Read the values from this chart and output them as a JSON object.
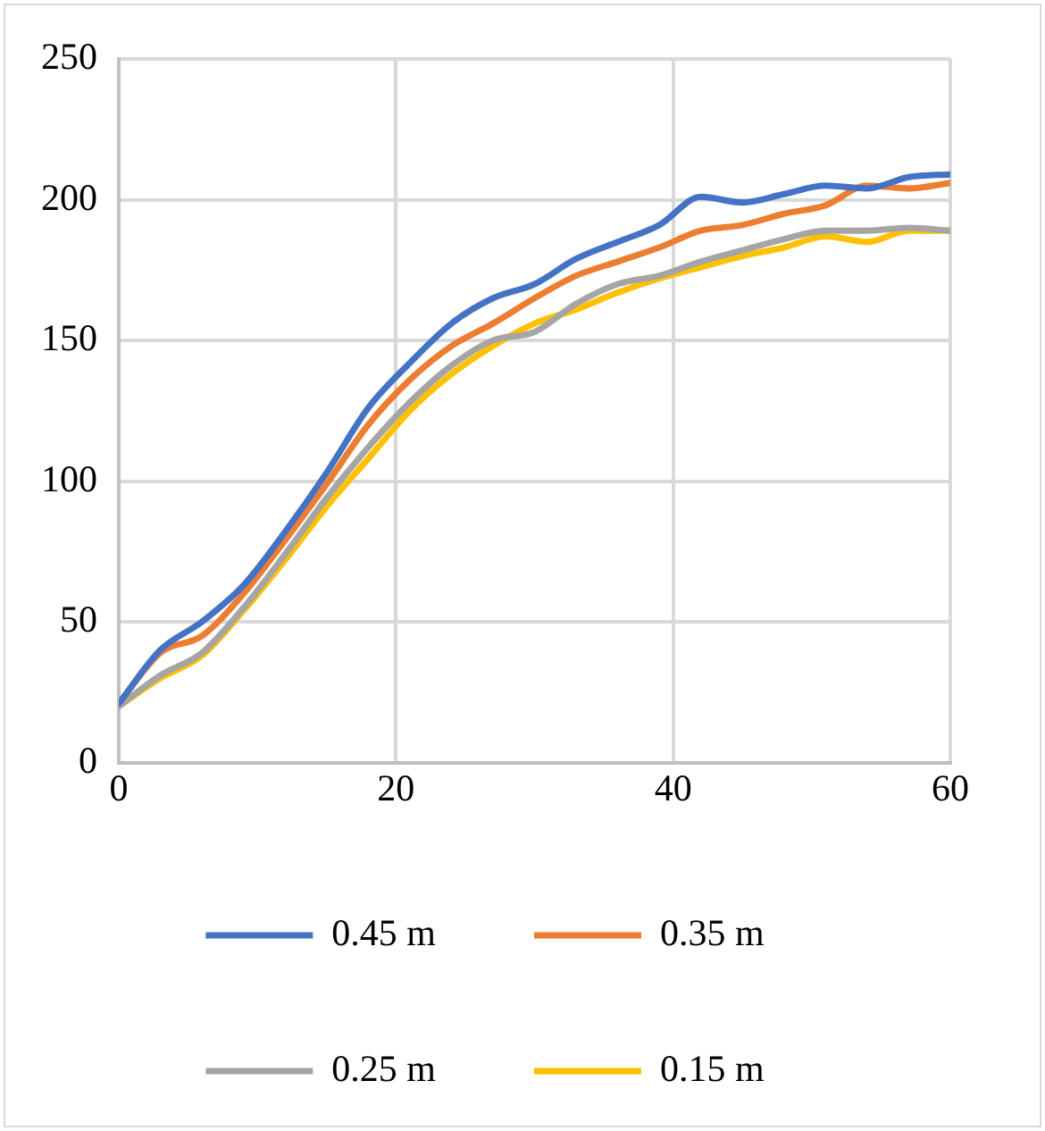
{
  "chart_data": {
    "type": "line",
    "x": [
      0,
      3,
      6,
      9,
      12,
      15,
      18,
      21,
      24,
      27,
      30,
      33,
      36,
      39,
      42,
      45,
      48,
      51,
      54,
      57,
      60
    ],
    "series": [
      {
        "name": "0.45 m",
        "color": "#4472c4",
        "values": [
          21,
          40,
          50,
          63,
          82,
          103,
          126,
          142,
          156,
          165,
          170,
          179,
          185,
          191,
          201,
          199,
          202,
          205,
          204,
          208,
          209
        ]
      },
      {
        "name": "0.35 m",
        "color": "#ed7d31",
        "values": [
          21,
          39,
          45,
          60,
          79,
          99,
          120,
          136,
          148,
          156,
          165,
          173,
          178,
          183,
          189,
          191,
          195,
          198,
          205,
          204,
          206
        ]
      },
      {
        "name": "0.25 m",
        "color": "#a5a5a5",
        "values": [
          20,
          31,
          39,
          55,
          74,
          94,
          112,
          128,
          141,
          150,
          153,
          163,
          170,
          173,
          178,
          182,
          186,
          189,
          189,
          190,
          189
        ]
      },
      {
        "name": "0.15 m",
        "color": "#ffc000",
        "values": [
          20,
          30,
          38,
          54,
          72,
          91,
          108,
          125,
          138,
          148,
          156,
          161,
          167,
          172,
          176,
          180,
          183,
          187,
          185,
          189,
          189
        ]
      }
    ],
    "xlim": [
      0,
      60
    ],
    "xticks": [
      0,
      20,
      40,
      60
    ],
    "ylim": [
      0,
      250
    ],
    "yticks": [
      0,
      50,
      100,
      150,
      200,
      250
    ],
    "grid": true,
    "legend": "bottom",
    "marker": "none",
    "line_style": "solid"
  }
}
